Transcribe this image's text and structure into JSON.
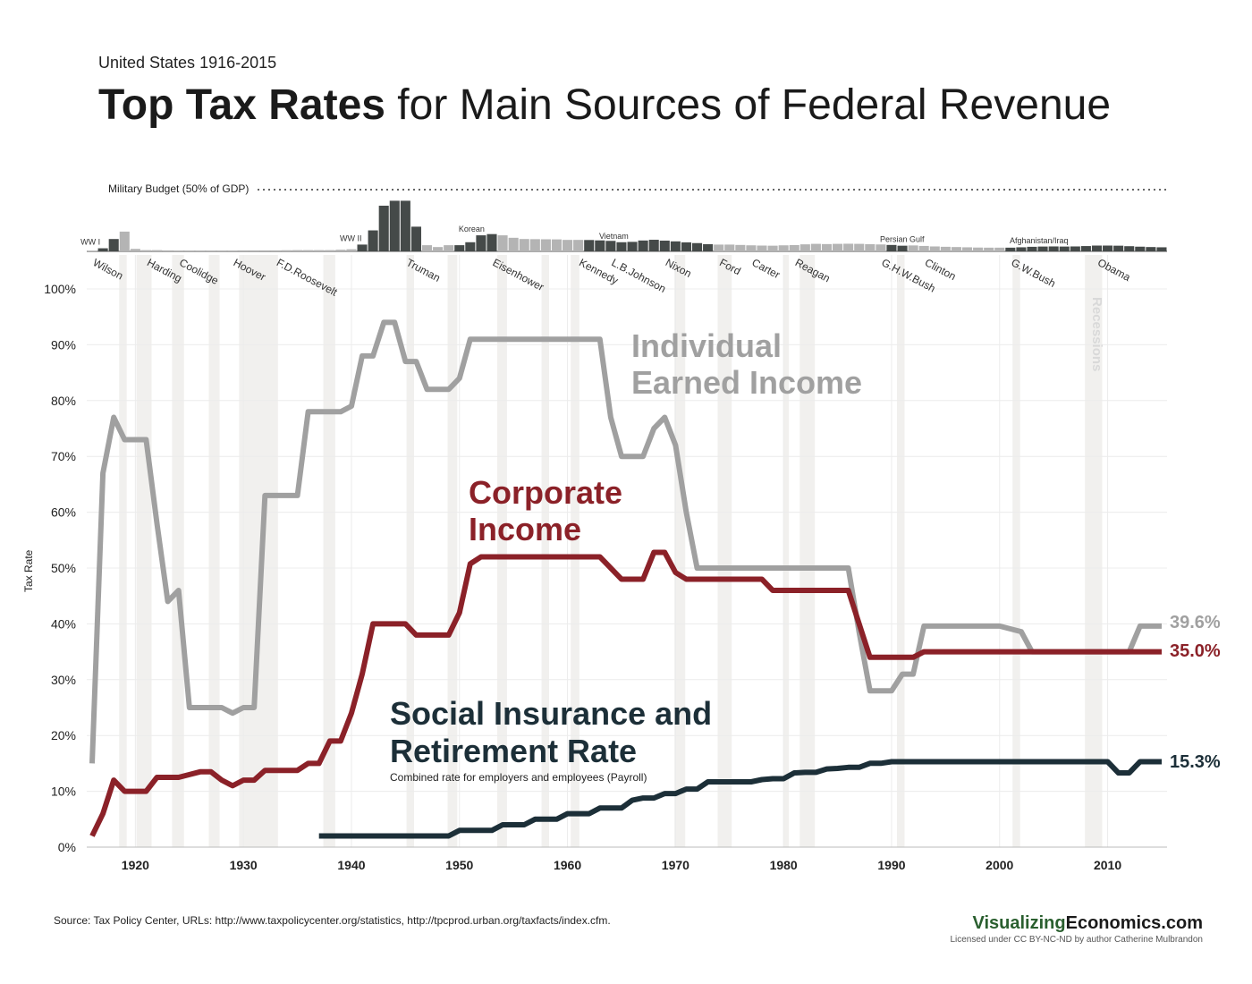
{
  "header": {
    "subtitle": "United States 1916-2015",
    "title_bold": "Top Tax Rates",
    "title_rest": " for Main Sources of Federal Revenue"
  },
  "colors": {
    "individual": "#a0a0a0",
    "corporate": "#8b2128",
    "social": "#1c2f38",
    "military_war": "#454a49",
    "military_peace": "#b4b4b4",
    "recession": "#f1f0ee"
  },
  "military": {
    "label": "Military Budget (50% of GDP)",
    "wars": [
      "WW I",
      "WW II",
      "Korean",
      "Vietnam",
      "Persian Gulf",
      "Afghanistan/Iraq"
    ],
    "war_years": [
      1917,
      1941,
      1952,
      1965,
      1991,
      2003
    ],
    "war_shade_ranges": [
      [
        1917,
        1918
      ],
      [
        1941,
        1946
      ],
      [
        1950,
        1953
      ],
      [
        1962,
        1973
      ],
      [
        1990,
        1991
      ],
      [
        2001,
        2015
      ]
    ]
  },
  "presidents": {
    "names": [
      "Wilson",
      "Harding",
      "Coolidge",
      "Hoover",
      "F.D.Roosevelt",
      "Truman",
      "Eisenhower",
      "Kennedy",
      "L.B.Johnson",
      "Nixon",
      "Ford",
      "Carter",
      "Reagan",
      "G.H.W.Bush",
      "Clinton",
      "G.W.Bush",
      "Obama"
    ],
    "years": [
      1916,
      1921,
      1924,
      1929,
      1933,
      1945,
      1953,
      1961,
      1964,
      1969,
      1974,
      1977,
      1981,
      1989,
      1993,
      2001,
      2009
    ]
  },
  "recession_label": "Recessions",
  "chart_data": {
    "type": "line",
    "title": "Top Tax Rates for Main Sources of Federal Revenue",
    "subtitle": "United States 1916-2015",
    "xlabel": "",
    "ylabel": "Tax Rate",
    "xlim": [
      1915.5,
      2015.5
    ],
    "ylim": [
      0,
      100
    ],
    "x_ticks": [
      1920,
      1930,
      1940,
      1950,
      1960,
      1970,
      1980,
      1990,
      2000,
      2010
    ],
    "y_tick_labels": [
      "0%",
      "10%",
      "20%",
      "30%",
      "40%",
      "50%",
      "60%",
      "70%",
      "80%",
      "90%",
      "100%"
    ],
    "y_ticks": [
      0,
      10,
      20,
      30,
      40,
      50,
      60,
      70,
      80,
      90,
      100
    ],
    "series": [
      {
        "name": "Individual Earned Income",
        "label_lines": [
          "Individual",
          "Earned Income"
        ],
        "end_label": "39.6%",
        "x": [
          1916,
          1917,
          1918,
          1919,
          1920,
          1921,
          1922,
          1923,
          1924,
          1925,
          1926,
          1927,
          1928,
          1929,
          1930,
          1931,
          1932,
          1933,
          1934,
          1935,
          1936,
          1937,
          1938,
          1939,
          1940,
          1941,
          1942,
          1943,
          1944,
          1945,
          1946,
          1947,
          1948,
          1949,
          1950,
          1951,
          1952,
          1953,
          1954,
          1955,
          1956,
          1957,
          1958,
          1959,
          1960,
          1961,
          1962,
          1963,
          1964,
          1965,
          1966,
          1967,
          1968,
          1969,
          1970,
          1971,
          1972,
          1973,
          1974,
          1975,
          1976,
          1977,
          1978,
          1979,
          1980,
          1981,
          1982,
          1983,
          1984,
          1985,
          1986,
          1987,
          1988,
          1989,
          1990,
          1991,
          1992,
          1993,
          1994,
          1995,
          1996,
          1997,
          1998,
          1999,
          2000,
          2001,
          2002,
          2003,
          2004,
          2005,
          2006,
          2007,
          2008,
          2009,
          2010,
          2011,
          2012,
          2013,
          2014,
          2015
        ],
        "values": [
          15,
          67,
          77,
          73,
          73,
          73,
          58,
          44,
          46,
          25,
          25,
          25,
          25,
          24,
          25,
          25,
          63,
          63,
          63,
          63,
          78,
          78,
          78,
          78,
          79,
          88,
          88,
          94,
          94,
          87,
          87,
          82,
          82,
          82,
          84,
          91,
          91,
          91,
          91,
          91,
          91,
          91,
          91,
          91,
          91,
          91,
          91,
          91,
          77,
          70,
          70,
          70,
          75,
          77,
          72,
          60,
          50,
          50,
          50,
          50,
          50,
          50,
          50,
          50,
          50,
          50,
          50,
          50,
          50,
          50,
          50,
          38.5,
          28,
          28,
          28,
          31,
          31,
          39.6,
          39.6,
          39.6,
          39.6,
          39.6,
          39.6,
          39.6,
          39.6,
          39.1,
          38.6,
          35,
          35,
          35,
          35,
          35,
          35,
          35,
          35,
          35,
          35,
          39.6,
          39.6,
          39.6
        ]
      },
      {
        "name": "Corporate Income",
        "label_lines": [
          "Corporate",
          "Income"
        ],
        "end_label": "35.0%",
        "x": [
          1916,
          1917,
          1918,
          1919,
          1920,
          1921,
          1922,
          1923,
          1924,
          1925,
          1926,
          1927,
          1928,
          1929,
          1930,
          1931,
          1932,
          1933,
          1934,
          1935,
          1936,
          1937,
          1938,
          1939,
          1940,
          1941,
          1942,
          1943,
          1944,
          1945,
          1946,
          1947,
          1948,
          1949,
          1950,
          1951,
          1952,
          1953,
          1954,
          1955,
          1956,
          1957,
          1958,
          1959,
          1960,
          1961,
          1962,
          1963,
          1964,
          1965,
          1966,
          1967,
          1968,
          1969,
          1970,
          1971,
          1972,
          1973,
          1974,
          1975,
          1976,
          1977,
          1978,
          1979,
          1980,
          1981,
          1982,
          1983,
          1984,
          1985,
          1986,
          1987,
          1988,
          1989,
          1990,
          1991,
          1992,
          1993,
          1994,
          1995,
          1996,
          1997,
          1998,
          1999,
          2000,
          2001,
          2002,
          2003,
          2004,
          2005,
          2006,
          2007,
          2008,
          2009,
          2010,
          2011,
          2012,
          2013,
          2014,
          2015
        ],
        "values": [
          2,
          6,
          12,
          10,
          10,
          10,
          12.5,
          12.5,
          12.5,
          13,
          13.5,
          13.5,
          12,
          11,
          12,
          12,
          13.75,
          13.75,
          13.75,
          13.75,
          15,
          15,
          19,
          19,
          24,
          31,
          40,
          40,
          40,
          40,
          38,
          38,
          38,
          38,
          42,
          50.75,
          52,
          52,
          52,
          52,
          52,
          52,
          52,
          52,
          52,
          52,
          52,
          52,
          50,
          48,
          48,
          48,
          52.8,
          52.8,
          49.2,
          48,
          48,
          48,
          48,
          48,
          48,
          48,
          48,
          46,
          46,
          46,
          46,
          46,
          46,
          46,
          46,
          40,
          34,
          34,
          34,
          34,
          34,
          35,
          35,
          35,
          35,
          35,
          35,
          35,
          35,
          35,
          35,
          35,
          35,
          35,
          35,
          35,
          35,
          35,
          35,
          35,
          35,
          35,
          35,
          35
        ]
      },
      {
        "name": "Social Insurance and Retirement Rate",
        "label_lines": [
          "Social Insurance and",
          "Retirement Rate"
        ],
        "note": "Combined rate for employers and employees (Payroll)",
        "end_label": "15.3%",
        "x": [
          1937,
          1938,
          1939,
          1940,
          1941,
          1942,
          1943,
          1944,
          1945,
          1946,
          1947,
          1948,
          1949,
          1950,
          1951,
          1952,
          1953,
          1954,
          1955,
          1956,
          1957,
          1958,
          1959,
          1960,
          1961,
          1962,
          1963,
          1964,
          1965,
          1966,
          1967,
          1968,
          1969,
          1970,
          1971,
          1972,
          1973,
          1974,
          1975,
          1976,
          1977,
          1978,
          1979,
          1980,
          1981,
          1982,
          1983,
          1984,
          1985,
          1986,
          1987,
          1988,
          1989,
          1990,
          1991,
          1992,
          1993,
          1994,
          1995,
          1996,
          1997,
          1998,
          1999,
          2000,
          2001,
          2002,
          2003,
          2004,
          2005,
          2006,
          2007,
          2008,
          2009,
          2010,
          2011,
          2012,
          2013,
          2014,
          2015
        ],
        "values": [
          2,
          2,
          2,
          2,
          2,
          2,
          2,
          2,
          2,
          2,
          2,
          2,
          2,
          3,
          3,
          3,
          3,
          4,
          4,
          4,
          5,
          5,
          5,
          6,
          6,
          6,
          7,
          7,
          7,
          8.4,
          8.8,
          8.8,
          9.6,
          9.6,
          10.4,
          10.4,
          11.7,
          11.7,
          11.7,
          11.7,
          11.7,
          12.1,
          12.26,
          12.26,
          13.3,
          13.4,
          13.4,
          14,
          14.1,
          14.3,
          14.3,
          15.02,
          15.02,
          15.3,
          15.3,
          15.3,
          15.3,
          15.3,
          15.3,
          15.3,
          15.3,
          15.3,
          15.3,
          15.3,
          15.3,
          15.3,
          15.3,
          15.3,
          15.3,
          15.3,
          15.3,
          15.3,
          15.3,
          15.3,
          13.3,
          13.3,
          15.3,
          15.3,
          15.3
        ]
      }
    ],
    "military_budget_pct_gdp": {
      "x": [
        1916,
        1917,
        1918,
        1919,
        1920,
        1921,
        1922,
        1923,
        1924,
        1925,
        1926,
        1927,
        1928,
        1929,
        1930,
        1931,
        1932,
        1933,
        1934,
        1935,
        1936,
        1937,
        1938,
        1939,
        1940,
        1941,
        1942,
        1943,
        1944,
        1945,
        1946,
        1947,
        1948,
        1949,
        1950,
        1951,
        1952,
        1953,
        1954,
        1955,
        1956,
        1957,
        1958,
        1959,
        1960,
        1961,
        1962,
        1963,
        1964,
        1965,
        1966,
        1967,
        1968,
        1969,
        1970,
        1971,
        1972,
        1973,
        1974,
        1975,
        1976,
        1977,
        1978,
        1979,
        1980,
        1981,
        1982,
        1983,
        1984,
        1985,
        1986,
        1987,
        1988,
        1989,
        1990,
        1991,
        1992,
        1993,
        1994,
        1995,
        1996,
        1997,
        1998,
        1999,
        2000,
        2001,
        2002,
        2003,
        2004,
        2005,
        2006,
        2007,
        2008,
        2009,
        2010,
        2011,
        2012,
        2013,
        2014,
        2015
      ],
      "values": [
        0.6,
        2.5,
        10,
        16,
        2,
        1,
        1,
        0.8,
        0.7,
        0.7,
        0.7,
        0.7,
        0.7,
        0.7,
        0.8,
        0.8,
        0.8,
        0.8,
        0.9,
        1,
        1,
        1,
        1,
        1.3,
        1.7,
        5.5,
        17,
        37,
        41,
        41,
        20,
        5,
        3.5,
        5,
        5,
        7.4,
        13,
        14,
        13,
        11,
        10,
        9.9,
        9.8,
        9.7,
        9.3,
        9.3,
        9.2,
        8.9,
        8.5,
        7.4,
        7.7,
        8.8,
        9.4,
        8.7,
        8.1,
        7.3,
        6.7,
        5.8,
        5.5,
        5.5,
        5.2,
        4.9,
        4.7,
        4.6,
        4.9,
        5.1,
        5.7,
        6.1,
        5.9,
        6.1,
        6.2,
        6.1,
        5.8,
        5.6,
        5.2,
        4.6,
        4.8,
        4.4,
        4,
        3.7,
        3.5,
        3.3,
        3.1,
        3,
        3,
        3,
        3.3,
        3.7,
        3.9,
        4,
        3.9,
        4,
        4.3,
        4.7,
        4.7,
        4.6,
        4.2,
        3.8,
        3.5,
        3.3
      ]
    },
    "recession_periods": [
      [
        1918.5,
        1919.2
      ],
      [
        1920.1,
        1921.5
      ],
      [
        1923.4,
        1924.5
      ],
      [
        1926.8,
        1927.8
      ],
      [
        1929.6,
        1933.2
      ],
      [
        1937.4,
        1938.5
      ],
      [
        1945.1,
        1945.8
      ],
      [
        1948.9,
        1949.8
      ],
      [
        1953.5,
        1954.4
      ],
      [
        1957.6,
        1958.3
      ],
      [
        1960.3,
        1961.1
      ],
      [
        1969.9,
        1970.9
      ],
      [
        1973.9,
        1975.2
      ],
      [
        1980.0,
        1980.5
      ],
      [
        1981.5,
        1982.9
      ],
      [
        1990.5,
        1991.2
      ],
      [
        2001.2,
        2001.9
      ],
      [
        2007.9,
        2009.5
      ]
    ]
  },
  "footer": {
    "source": "Source: Tax Policy Center, URLs: http://www.taxpolicycenter.org/statistics, http://tpcprod.urban.org/taxfacts/index.cfm.",
    "brand_green": "Visualizing",
    "brand_black": "Economics.com",
    "license": "Licensed under CC BY-NC-ND by author Catherine Mulbrandon"
  }
}
